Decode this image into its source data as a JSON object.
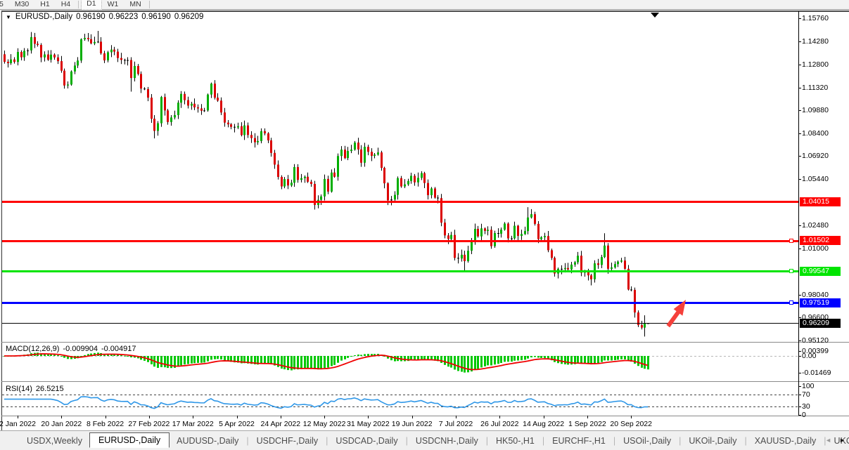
{
  "toolbar": {
    "timeframes": [
      {
        "label": "5"
      },
      {
        "label": "M30"
      },
      {
        "label": "H1"
      },
      {
        "label": "H4",
        "sep_after": true
      },
      {
        "label": "D1",
        "active": true
      },
      {
        "label": "W1"
      },
      {
        "label": "MN",
        "sep_after": true
      }
    ]
  },
  "chart": {
    "symbol_period": "EURUSD-,Daily",
    "expander_icon": "▼",
    "ohlc": {
      "open": "0.96190",
      "high": "0.96223",
      "low": "0.96190",
      "close": "0.96209"
    }
  },
  "chart_data": {
    "type": "candlestick",
    "symbol": "EURUSD",
    "period": "Daily",
    "x_range": [
      "2 Jan 2022",
      "28 Sep 2022"
    ],
    "y_range": [
      0.9502,
      1.1621
    ],
    "first_open": 1.1345,
    "closes": [
      1.1297,
      1.1288,
      1.1312,
      1.1296,
      1.136,
      1.1326,
      1.1367,
      1.137,
      1.1455,
      1.1412,
      1.1405,
      1.1325,
      1.1344,
      1.131,
      1.1343,
      1.1325,
      1.1301,
      1.124,
      1.1145,
      1.1151,
      1.1235,
      1.1273,
      1.1305,
      1.1441,
      1.145,
      1.1442,
      1.1415,
      1.1424,
      1.1426,
      1.1351,
      1.1306,
      1.1358,
      1.1375,
      1.1362,
      1.1321,
      1.1309,
      1.1306,
      1.1308,
      1.1193,
      1.127,
      1.1219,
      1.1125,
      1.1122,
      1.1067,
      1.0932,
      1.0854,
      1.0903,
      1.1071,
      1.0985,
      1.0911,
      1.094,
      1.0955,
      1.1035,
      1.1091,
      1.1051,
      1.1016,
      1.1028,
      1.1005,
      1.0998,
      1.0983,
      1.0985,
      1.1087,
      1.1157,
      1.1067,
      1.1048,
      1.0972,
      1.0907,
      1.0896,
      1.088,
      1.0876,
      1.0884,
      1.0827,
      1.0889,
      1.0828,
      1.0808,
      1.0781,
      1.0789,
      1.0852,
      1.0838,
      1.0793,
      1.0713,
      1.0638,
      1.0559,
      1.0498,
      1.0545,
      1.0504,
      1.0522,
      1.0622,
      1.054,
      1.0551,
      1.056,
      1.0528,
      1.0514,
      1.0379,
      1.0412,
      1.0434,
      1.0546,
      1.0465,
      1.0587,
      1.056,
      1.0693,
      1.0734,
      1.068,
      1.0725,
      1.0734,
      1.0779,
      1.0735,
      1.065,
      1.0752,
      1.072,
      1.0694,
      1.0702,
      1.0716,
      1.0617,
      1.0518,
      1.0409,
      1.0414,
      1.0444,
      1.0551,
      1.0498,
      1.0511,
      1.0533,
      1.0566,
      1.0524,
      1.0553,
      1.0583,
      1.052,
      1.0442,
      1.0485,
      1.0426,
      1.0423,
      1.0266,
      1.0184,
      1.0161,
      1.0187,
      1.004,
      1.0036,
      1.006,
      1.0019,
      1.0086,
      1.0143,
      1.0226,
      1.0178,
      1.0229,
      1.0213,
      1.022,
      1.0115,
      1.0199,
      1.0195,
      1.0221,
      1.026,
      1.0165,
      1.0165,
      1.0246,
      1.0181,
      1.0193,
      1.0212,
      1.0299,
      1.032,
      1.0258,
      1.016,
      1.0172,
      1.018,
      1.0089,
      1.004,
      0.994,
      0.997,
      0.9968,
      0.9975,
      0.9966,
      0.9997,
      1.0012,
      1.0054,
      0.9945,
      0.9955,
      0.9928,
      0.9903,
      1.0005,
      0.9995,
      1.0045,
      1.0119,
      0.997,
      0.9979,
      1.0,
      1.0016,
      1.0023,
      0.997,
      0.9837,
      0.9835,
      0.969,
      0.9609,
      0.9593,
      0.96209,
      0.96209
    ],
    "candle_overrides": {
      "28": {
        "h": 1.1495
      },
      "38": {
        "l": 1.1106
      },
      "45": {
        "l": 1.0806
      },
      "93": {
        "l": 1.035
      },
      "138": {
        "l": 0.9952
      },
      "157": {
        "h": 1.0365
      },
      "176": {
        "l": 0.9864
      },
      "180": {
        "h": 1.0198
      },
      "192": {
        "h": 0.9672,
        "l": 0.9536
      },
      "193": {
        "o": 0.9619,
        "h": 0.96223,
        "l": 0.9619,
        "c": 0.96209
      }
    },
    "price_ticks": [
      "1.15760",
      "1.14280",
      "1.12800",
      "1.11320",
      "1.09880",
      "1.08400",
      "1.06920",
      "1.05440",
      "1.02480",
      "1.01000",
      "0.98040",
      "0.96600",
      "0.95120"
    ],
    "levels": [
      {
        "price": 1.04015,
        "label": "1.04015",
        "color": "#FF0000",
        "thickness": 3,
        "handle": false
      },
      {
        "price": 1.01502,
        "label": "1.01502",
        "color": "#FF0000",
        "thickness": 3,
        "handle": true
      },
      {
        "price": 0.99547,
        "label": "0.99547",
        "color": "#00E400",
        "thickness": 3,
        "handle": true
      },
      {
        "price": 0.97519,
        "label": "0.97519",
        "color": "#0000FF",
        "thickness": 3,
        "handle": true
      }
    ],
    "bid": {
      "price": 0.96209,
      "label": "0.96209",
      "color": "#000000"
    },
    "date_ticks": [
      "2 Jan 2022",
      "20 Jan 2022",
      "8 Feb 2022",
      "27 Feb 2022",
      "17 Mar 2022",
      "5 Apr 2022",
      "24 Apr 2022",
      "12 May 2022",
      "31 May 2022",
      "19 Jun 2022",
      "7 Jul 2022",
      "26 Jul 2022",
      "14 Aug 2022",
      "1 Sep 2022",
      "20 Sep 2022"
    ],
    "colors": {
      "up": "#00AE00",
      "down": "#DB0000",
      "wick": "#000000",
      "macd_histogram": "#00C800",
      "macd_signal": "#F00000",
      "rsi_line": "#2E97E8",
      "arrow": "#F5403B"
    },
    "annotations": {
      "arrow": {
        "type": "up-arrow",
        "color": "#F5403B",
        "near_price": 0.962,
        "points_to": 0.97519
      }
    }
  },
  "indicators": {
    "macd": {
      "display_name": "MACD(12,26,9)",
      "fast": 12,
      "slow": 26,
      "signal_period": 9,
      "value": "-0.009904",
      "signal_value": "-0.004917",
      "ticks": [
        {
          "label": "0.00399",
          "value": 0.00399
        },
        {
          "label": "0.00",
          "value": 0
        },
        {
          "label": "-0.01469",
          "value": -0.01469
        }
      ]
    },
    "rsi": {
      "display_name": "RSI(14)",
      "period": 14,
      "value": "26.5215",
      "ticks": [
        {
          "label": "100",
          "value": 100
        },
        {
          "label": "70",
          "value": 70
        },
        {
          "label": "30",
          "value": 30
        },
        {
          "label": "0",
          "value": 0
        }
      ],
      "dashed_levels": [
        70,
        30
      ]
    }
  },
  "tabs": {
    "items": [
      {
        "label": "USDX,Weekly"
      },
      {
        "label": "EURUSD-,Daily",
        "active": true
      },
      {
        "label": "AUDUSD-,Daily"
      },
      {
        "label": "USDCHF-,Daily"
      },
      {
        "label": "USDCAD-,Daily"
      },
      {
        "label": "USDCNH-,Daily"
      },
      {
        "label": "HK50-,H1"
      },
      {
        "label": "EURCHF-,H1"
      },
      {
        "label": "USOil-,Daily"
      },
      {
        "label": "UKOil-,Daily"
      },
      {
        "label": "XAUUSD-,Daily"
      },
      {
        "label": "UKOil-,Da"
      }
    ],
    "scroll_left": "◄",
    "scroll_right": "►"
  }
}
